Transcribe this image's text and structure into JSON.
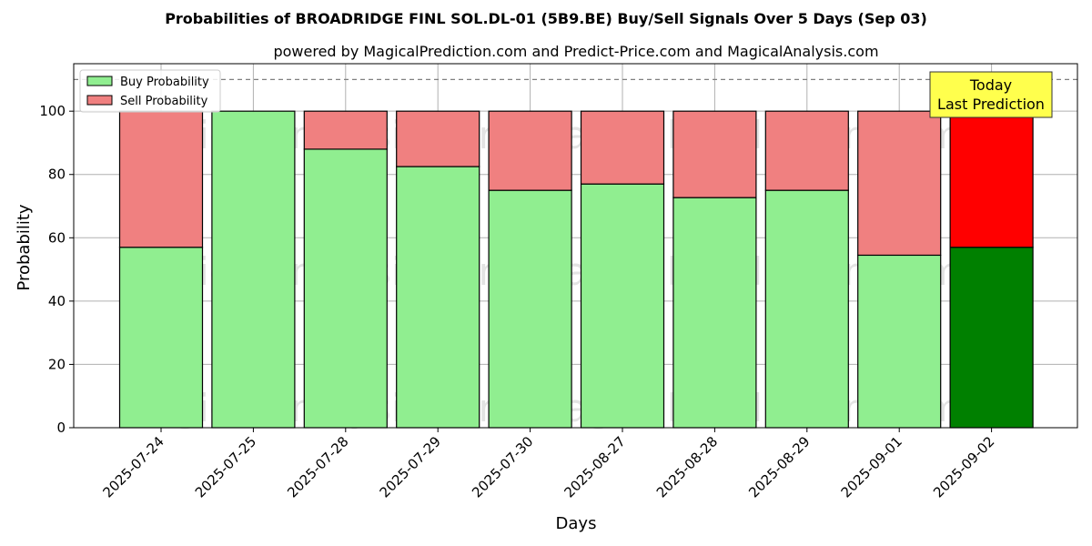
{
  "chart_data": {
    "type": "bar",
    "title": "Probabilities of BROADRIDGE FINL SOL.DL-01 (5B9.BE) Buy/Sell Signals Over 5 Days (Sep 03)",
    "subtitle": "powered by MagicalPrediction.com and Predict-Price.com and MagicalAnalysis.com",
    "xlabel": "Days",
    "ylabel": "Probability",
    "ylim": [
      0,
      115
    ],
    "yticks": [
      0,
      20,
      40,
      60,
      80,
      100
    ],
    "grid": true,
    "legend_position": "top-left",
    "categories": [
      "2025-07-24",
      "2025-07-25",
      "2025-07-28",
      "2025-07-29",
      "2025-07-30",
      "2025-08-27",
      "2025-08-28",
      "2025-08-29",
      "2025-09-01",
      "2025-09-02"
    ],
    "series": [
      {
        "name": "Buy Probability",
        "color": "#90EE90",
        "highlight_color": "#008000",
        "values": [
          57,
          100,
          88,
          82.5,
          75,
          77,
          72.7,
          75,
          54.5,
          57
        ]
      },
      {
        "name": "Sell Probability",
        "color": "#F08080",
        "highlight_color": "#FF0000",
        "values": [
          43,
          0,
          12,
          17.5,
          25,
          23,
          27.3,
          25,
          45.5,
          43
        ]
      }
    ],
    "highlight_index": 9,
    "reference_line": {
      "value": 110,
      "style": "dashed",
      "color": "#808080"
    },
    "annotation": {
      "lines": [
        "Today",
        "Last Prediction"
      ],
      "background": "#FFFF4D"
    },
    "watermarks": [
      "MagicalAnalysis.com",
      "MagicalPrediction.com"
    ]
  }
}
